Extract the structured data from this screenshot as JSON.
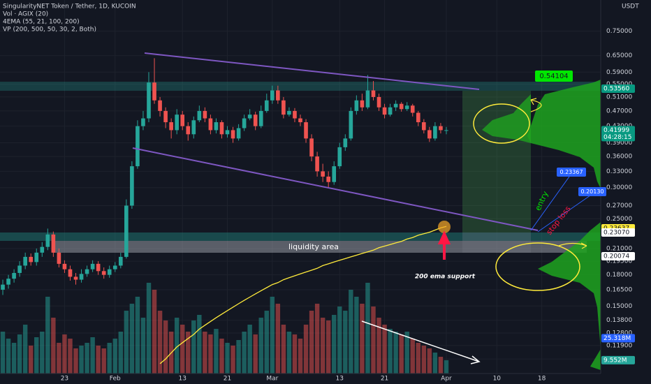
{
  "chart_data": {
    "type": "candlestick",
    "title": "SingularityNET Token / Tether, 1D, KUCOIN",
    "indicators": [
      "Vol · AGIX (20)",
      "4EMA (55, 21, 100, 200)",
      "VP (200, 500, 50, 30, 2, Both)"
    ],
    "y_unit": "USDT",
    "log_scale": true,
    "grid": true,
    "up_color": "#26a69a",
    "down_color": "#ef5350",
    "ylim": [
      0.101,
      0.9
    ],
    "yticks": [
      {
        "value": 0.75,
        "label": "0.75000"
      },
      {
        "value": 0.65,
        "label": "0.65000"
      },
      {
        "value": 0.59,
        "label": "0.59000"
      },
      {
        "value": 0.55,
        "label": "0.55000"
      },
      {
        "value": 0.51,
        "label": "0.51000"
      },
      {
        "value": 0.47,
        "label": "0.47000"
      },
      {
        "value": 0.43,
        "label": "0.43000"
      },
      {
        "value": 0.39,
        "label": "0.39000"
      },
      {
        "value": 0.36,
        "label": "0.36000"
      },
      {
        "value": 0.33,
        "label": "0.33000"
      },
      {
        "value": 0.3,
        "label": "0.30000"
      },
      {
        "value": 0.27,
        "label": "0.27000"
      },
      {
        "value": 0.25,
        "label": "0.25000"
      },
      {
        "value": 0.21,
        "label": "0.21000"
      },
      {
        "value": 0.195,
        "label": "0.19500"
      },
      {
        "value": 0.18,
        "label": "0.18000"
      },
      {
        "value": 0.165,
        "label": "0.16500"
      },
      {
        "value": 0.15,
        "label": "0.15000"
      },
      {
        "value": 0.138,
        "label": "0.13800"
      },
      {
        "value": 0.128,
        "label": "0.12800"
      },
      {
        "value": 0.119,
        "label": "0.11900"
      },
      {
        "value": 0.11,
        "label": "0.11000"
      }
    ],
    "xlim": [
      -0.5,
      106.5
    ],
    "xticks": [
      {
        "value": 11,
        "label": "23"
      },
      {
        "value": 20,
        "label": "Feb"
      },
      {
        "value": 32,
        "label": "13"
      },
      {
        "value": 40,
        "label": "21"
      },
      {
        "value": 48,
        "label": "Mar"
      },
      {
        "value": 60,
        "label": "13"
      },
      {
        "value": 68,
        "label": "21"
      },
      {
        "value": 79,
        "label": "Apr"
      },
      {
        "value": 88,
        "label": "10"
      },
      {
        "value": 96,
        "label": "18"
      }
    ],
    "candles": [
      [
        0.165,
        0.175,
        0.16,
        0.17
      ],
      [
        0.17,
        0.18,
        0.166,
        0.176
      ],
      [
        0.176,
        0.186,
        0.172,
        0.182
      ],
      [
        0.182,
        0.195,
        0.178,
        0.19
      ],
      [
        0.19,
        0.205,
        0.186,
        0.2
      ],
      [
        0.2,
        0.204,
        0.19,
        0.194
      ],
      [
        0.194,
        0.21,
        0.19,
        0.205
      ],
      [
        0.205,
        0.218,
        0.2,
        0.212
      ],
      [
        0.212,
        0.236,
        0.208,
        0.228
      ],
      [
        0.228,
        0.232,
        0.2,
        0.205
      ],
      [
        0.205,
        0.21,
        0.188,
        0.192
      ],
      [
        0.192,
        0.196,
        0.182,
        0.186
      ],
      [
        0.186,
        0.19,
        0.174,
        0.178
      ],
      [
        0.178,
        0.182,
        0.17,
        0.175
      ],
      [
        0.175,
        0.186,
        0.172,
        0.181
      ],
      [
        0.181,
        0.19,
        0.178,
        0.186
      ],
      [
        0.186,
        0.196,
        0.183,
        0.192
      ],
      [
        0.192,
        0.195,
        0.18,
        0.184
      ],
      [
        0.184,
        0.188,
        0.176,
        0.18
      ],
      [
        0.18,
        0.19,
        0.177,
        0.186
      ],
      [
        0.186,
        0.194,
        0.183,
        0.19
      ],
      [
        0.19,
        0.205,
        0.187,
        0.2
      ],
      [
        0.2,
        0.28,
        0.198,
        0.27
      ],
      [
        0.27,
        0.35,
        0.265,
        0.34
      ],
      [
        0.34,
        0.445,
        0.335,
        0.43
      ],
      [
        0.43,
        0.47,
        0.42,
        0.45
      ],
      [
        0.45,
        0.59,
        0.44,
        0.555
      ],
      [
        0.555,
        0.64,
        0.49,
        0.5
      ],
      [
        0.5,
        0.51,
        0.455,
        0.47
      ],
      [
        0.47,
        0.48,
        0.425,
        0.44
      ],
      [
        0.44,
        0.45,
        0.4,
        0.42
      ],
      [
        0.42,
        0.475,
        0.41,
        0.46
      ],
      [
        0.46,
        0.47,
        0.42,
        0.43
      ],
      [
        0.43,
        0.44,
        0.395,
        0.41
      ],
      [
        0.41,
        0.455,
        0.4,
        0.445
      ],
      [
        0.445,
        0.485,
        0.44,
        0.47
      ],
      [
        0.47,
        0.48,
        0.44,
        0.45
      ],
      [
        0.45,
        0.46,
        0.41,
        0.42
      ],
      [
        0.42,
        0.45,
        0.412,
        0.44
      ],
      [
        0.44,
        0.445,
        0.4,
        0.41
      ],
      [
        0.41,
        0.43,
        0.402,
        0.42
      ],
      [
        0.42,
        0.428,
        0.39,
        0.4
      ],
      [
        0.4,
        0.435,
        0.395,
        0.425
      ],
      [
        0.425,
        0.46,
        0.418,
        0.45
      ],
      [
        0.45,
        0.475,
        0.445,
        0.46
      ],
      [
        0.46,
        0.468,
        0.42,
        0.43
      ],
      [
        0.43,
        0.485,
        0.425,
        0.47
      ],
      [
        0.47,
        0.52,
        0.465,
        0.5
      ],
      [
        0.5,
        0.545,
        0.49,
        0.53
      ],
      [
        0.53,
        0.545,
        0.49,
        0.5
      ],
      [
        0.5,
        0.51,
        0.45,
        0.46
      ],
      [
        0.46,
        0.48,
        0.455,
        0.47
      ],
      [
        0.47,
        0.478,
        0.44,
        0.45
      ],
      [
        0.45,
        0.46,
        0.43,
        0.44
      ],
      [
        0.44,
        0.448,
        0.39,
        0.4
      ],
      [
        0.4,
        0.41,
        0.35,
        0.36
      ],
      [
        0.36,
        0.37,
        0.32,
        0.33
      ],
      [
        0.33,
        0.345,
        0.31,
        0.32
      ],
      [
        0.32,
        0.33,
        0.3,
        0.31
      ],
      [
        0.31,
        0.35,
        0.305,
        0.34
      ],
      [
        0.34,
        0.39,
        0.335,
        0.38
      ],
      [
        0.38,
        0.41,
        0.372,
        0.4
      ],
      [
        0.4,
        0.48,
        0.395,
        0.47
      ],
      [
        0.47,
        0.515,
        0.46,
        0.5
      ],
      [
        0.5,
        0.52,
        0.47,
        0.48
      ],
      [
        0.48,
        0.58,
        0.475,
        0.53
      ],
      [
        0.53,
        0.56,
        0.5,
        0.51
      ],
      [
        0.51,
        0.52,
        0.47,
        0.48
      ],
      [
        0.48,
        0.49,
        0.45,
        0.46
      ],
      [
        0.46,
        0.49,
        0.455,
        0.48
      ],
      [
        0.48,
        0.5,
        0.47,
        0.49
      ],
      [
        0.49,
        0.495,
        0.468,
        0.475
      ],
      [
        0.475,
        0.495,
        0.47,
        0.485
      ],
      [
        0.485,
        0.49,
        0.455,
        0.465
      ],
      [
        0.465,
        0.47,
        0.43,
        0.44
      ],
      [
        0.44,
        0.448,
        0.412,
        0.42
      ],
      [
        0.42,
        0.428,
        0.392,
        0.4
      ],
      [
        0.4,
        0.44,
        0.395,
        0.43
      ],
      [
        0.43,
        0.438,
        0.412,
        0.42
      ],
      [
        0.42,
        0.428,
        0.41,
        0.42
      ]
    ],
    "volume": {
      "ylim": [
        0,
        267.5
      ],
      "values": [
        30,
        25,
        22,
        28,
        35,
        20,
        26,
        30,
        55,
        40,
        22,
        28,
        25,
        18,
        20,
        22,
        26,
        20,
        18,
        22,
        25,
        30,
        45,
        50,
        55,
        40,
        65,
        60,
        45,
        38,
        30,
        40,
        35,
        30,
        38,
        42,
        30,
        28,
        32,
        25,
        22,
        20,
        24,
        30,
        35,
        28,
        40,
        45,
        55,
        50,
        35,
        30,
        28,
        25,
        35,
        45,
        50,
        40,
        38,
        42,
        48,
        45,
        60,
        55,
        50,
        65,
        48,
        40,
        35,
        32,
        30,
        28,
        30,
        25,
        22,
        20,
        18,
        15,
        12,
        9.552
      ],
      "badges": [
        {
          "value": 25.318,
          "label": "25.318M",
          "color": "#2962ff"
        },
        {
          "value": 9.552,
          "label": "9.552M",
          "color": "#26a69a"
        }
      ]
    },
    "ema200": {
      "color": "#ffeb3b",
      "values": [
        null,
        null,
        null,
        null,
        null,
        null,
        null,
        null,
        null,
        null,
        null,
        null,
        null,
        null,
        null,
        null,
        null,
        null,
        null,
        null,
        null,
        null,
        null,
        null,
        null,
        null,
        null,
        null,
        0.107,
        0.11,
        0.114,
        0.118,
        0.121,
        0.124,
        0.127,
        0.131,
        0.134,
        0.137,
        0.14,
        0.143,
        0.146,
        0.149,
        0.152,
        0.155,
        0.158,
        0.161,
        0.164,
        0.167,
        0.17,
        0.172,
        0.175,
        0.177,
        0.179,
        0.181,
        0.183,
        0.185,
        0.187,
        0.19,
        0.192,
        0.194,
        0.196,
        0.198,
        0.2,
        0.202,
        0.204,
        0.206,
        0.208,
        0.211,
        0.213,
        0.215,
        0.217,
        0.219,
        0.222,
        0.224,
        0.227,
        0.229,
        0.231,
        0.234,
        0.237,
        0.239
      ]
    },
    "price_badges": [
      {
        "value": 0.5356,
        "label": "0.53560",
        "color": "#089981",
        "text_color": "#ffffff"
      },
      {
        "value": 0.41999,
        "label": "0.41999",
        "countdown": "04:28:15",
        "color": "#089981",
        "text_color": "#ffffff"
      },
      {
        "value": 0.23637,
        "label": "0.23637",
        "color": "#ffeb3b",
        "text_color": "#131722"
      },
      {
        "value": 0.2307,
        "label": "0.23070",
        "color": "#ffffff",
        "text_color": "#131722"
      },
      {
        "value": 0.20074,
        "label": "0.20074",
        "color": "#ffffff",
        "text_color": "#131722"
      }
    ],
    "callouts": [
      {
        "value": 0.54104,
        "label": "0.54104",
        "color": "#00e600",
        "text_color": "#131722"
      },
      {
        "value": 0.23367,
        "label": "0.23367",
        "color": "#2962ff",
        "text_color": "#ffffff"
      },
      {
        "value": 0.2013,
        "label": "0.20130",
        "color": "#2962ff",
        "text_color": "#ffffff"
      }
    ],
    "annotations": {
      "liquidity": "liquidity area",
      "support": "200 ema support",
      "entry": "entry",
      "stop": "stop loss"
    }
  }
}
